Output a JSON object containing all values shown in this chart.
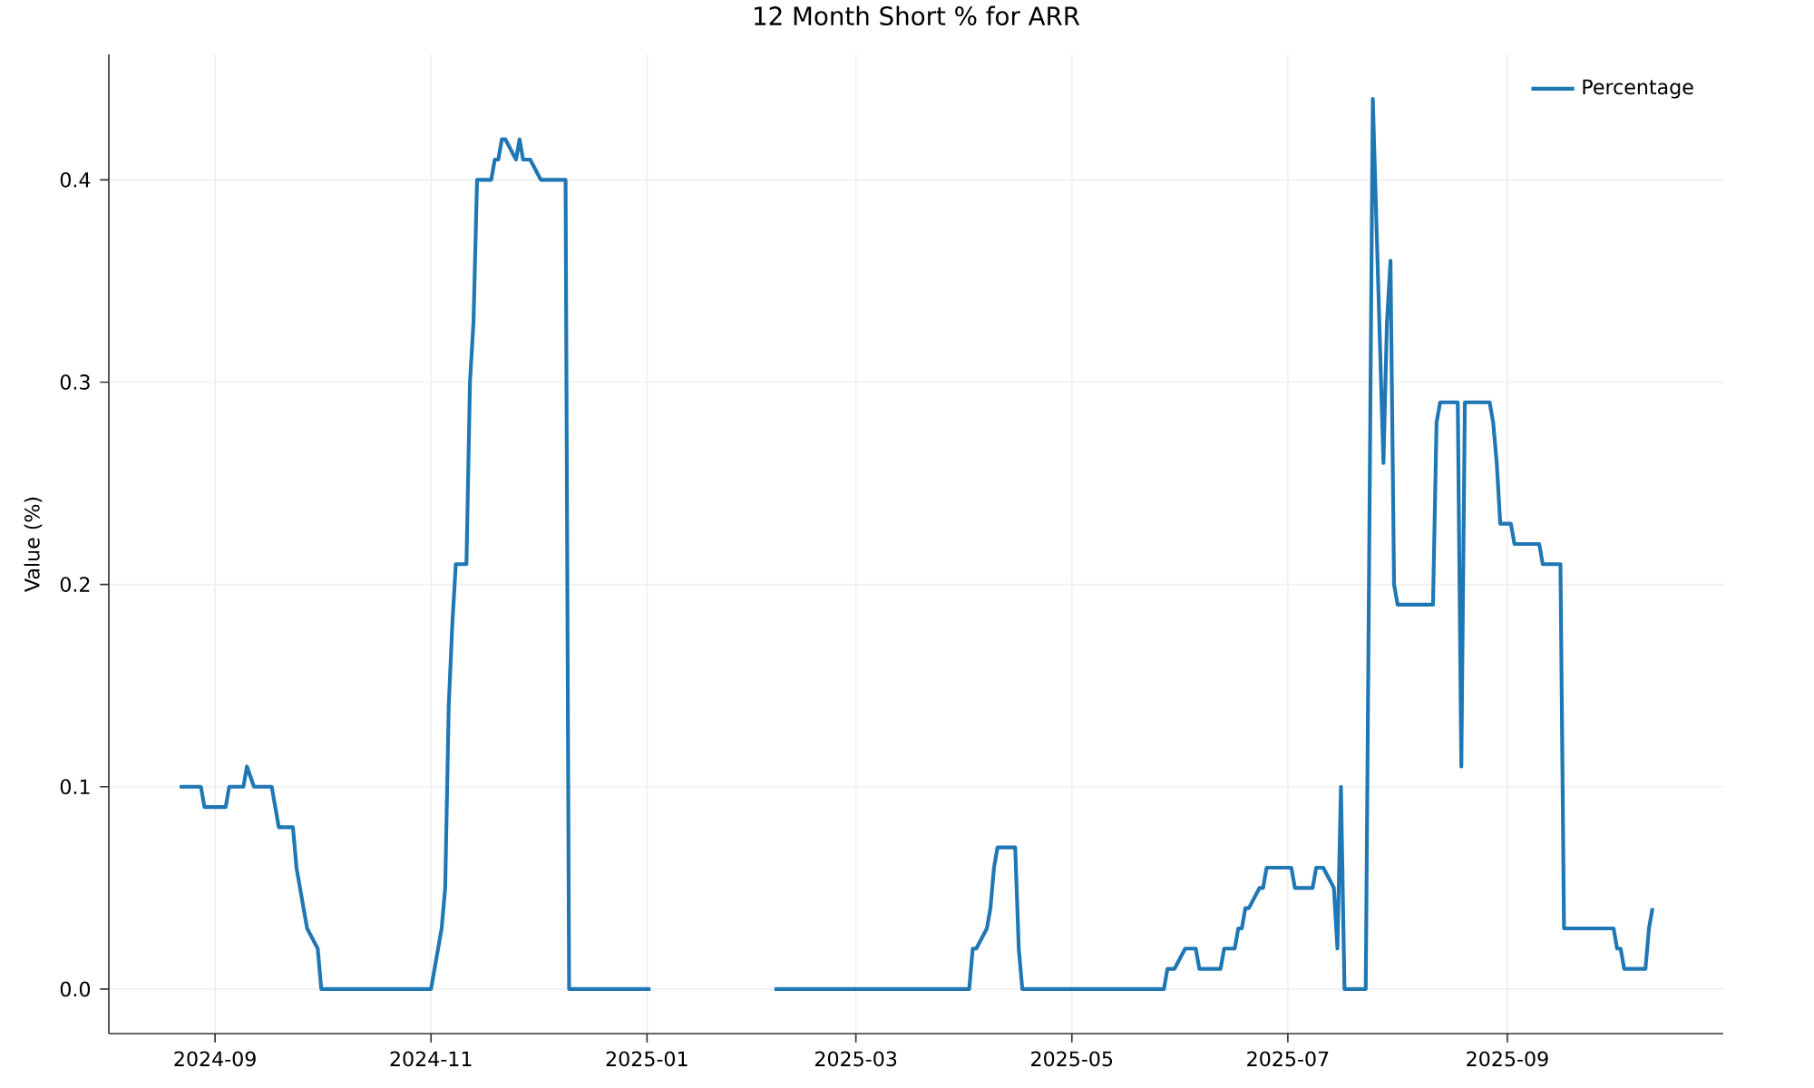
{
  "chart_data": {
    "type": "line",
    "title": "12 Month Short % for ARR",
    "ylabel": "Value (%)",
    "x": [
      "2024-08-22",
      "2024-08-28",
      "2024-08-29",
      "2024-09-04",
      "2024-09-05",
      "2024-09-09",
      "2024-09-10",
      "2024-09-12",
      "2024-09-17",
      "2024-09-19",
      "2024-09-23",
      "2024-09-24",
      "2024-09-27",
      "2024-09-30",
      "2024-10-01",
      "2024-11-01",
      "2024-11-04",
      "2024-11-05",
      "2024-11-06",
      "2024-11-07",
      "2024-11-08",
      "2024-11-11",
      "2024-11-12",
      "2024-11-13",
      "2024-11-14",
      "2024-11-18",
      "2024-11-19",
      "2024-11-20",
      "2024-11-21",
      "2024-11-22",
      "2024-11-25",
      "2024-11-26",
      "2024-11-27",
      "2024-11-29",
      "2024-12-02",
      "2024-12-09",
      "2024-12-10",
      "2025-01-02",
      "2025-01-20",
      "2025-02-06",
      "2025-04-02",
      "2025-04-03",
      "2025-04-04",
      "2025-04-07",
      "2025-04-08",
      "2025-04-09",
      "2025-04-10",
      "2025-04-15",
      "2025-04-16",
      "2025-04-17",
      "2025-05-27",
      "2025-05-28",
      "2025-05-30",
      "2025-06-02",
      "2025-06-05",
      "2025-06-06",
      "2025-06-12",
      "2025-06-13",
      "2025-06-16",
      "2025-06-17",
      "2025-06-18",
      "2025-06-19",
      "2025-06-20",
      "2025-06-23",
      "2025-06-24",
      "2025-06-25",
      "2025-07-02",
      "2025-07-03",
      "2025-07-08",
      "2025-07-09",
      "2025-07-11",
      "2025-07-14",
      "2025-07-15",
      "2025-07-16",
      "2025-07-17",
      "2025-07-23",
      "2025-07-25",
      "2025-07-28",
      "2025-07-29",
      "2025-07-30",
      "2025-07-31",
      "2025-08-01",
      "2025-08-11",
      "2025-08-12",
      "2025-08-13",
      "2025-08-18",
      "2025-08-19",
      "2025-08-20",
      "2025-08-27",
      "2025-08-28",
      "2025-08-29",
      "2025-08-30",
      "2025-09-02",
      "2025-09-03",
      "2025-09-10",
      "2025-09-11",
      "2025-09-16",
      "2025-09-17",
      "2025-10-01",
      "2025-10-02",
      "2025-10-03",
      "2025-10-04",
      "2025-10-10",
      "2025-10-11",
      "2025-10-12"
    ],
    "series": [
      {
        "name": "Percentage",
        "color": "#1f77b4",
        "values": [
          0.1,
          0.1,
          0.09,
          0.09,
          0.1,
          0.1,
          0.11,
          0.1,
          0.1,
          0.08,
          0.08,
          0.06,
          0.03,
          0.02,
          0.0,
          0.0,
          0.03,
          0.05,
          0.14,
          0.18,
          0.21,
          0.21,
          0.3,
          0.33,
          0.4,
          0.4,
          0.41,
          0.41,
          0.42,
          0.42,
          0.41,
          0.42,
          0.41,
          0.41,
          0.4,
          0.4,
          0.0,
          0.0,
          null,
          0.0,
          0.0,
          0.02,
          0.02,
          0.03,
          0.04,
          0.06,
          0.07,
          0.07,
          0.02,
          0.0,
          0.0,
          0.01,
          0.01,
          0.02,
          0.02,
          0.01,
          0.01,
          0.02,
          0.02,
          0.03,
          0.03,
          0.04,
          0.04,
          0.05,
          0.05,
          0.06,
          0.06,
          0.05,
          0.05,
          0.06,
          0.06,
          0.05,
          0.02,
          0.1,
          0.0,
          0.0,
          0.44,
          0.26,
          0.33,
          0.36,
          0.2,
          0.19,
          0.19,
          0.28,
          0.29,
          0.29,
          0.11,
          0.29,
          0.29,
          0.28,
          0.26,
          0.23,
          0.23,
          0.22,
          0.22,
          0.21,
          0.21,
          0.03,
          0.03,
          0.02,
          0.02,
          0.01,
          0.01,
          0.03,
          0.04
        ]
      }
    ],
    "xlim": [
      "2024-08-02",
      "2025-11-01"
    ],
    "ylim": [
      -0.022,
      0.462
    ],
    "xticks": [
      "2024-09",
      "2024-11",
      "2025-01",
      "2025-03",
      "2025-05",
      "2025-07",
      "2025-09"
    ],
    "yticks": [
      {
        "value": 0,
        "label": "0.0"
      },
      0.1,
      0.2,
      0.3,
      0.4
    ],
    "grid": true,
    "legend": "top right",
    "line_style": "solid"
  }
}
